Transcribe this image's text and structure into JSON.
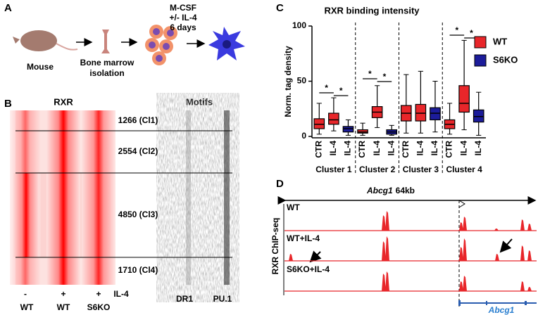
{
  "panel_a": {
    "label": "A",
    "mouse": "Mouse",
    "bone_marrow": [
      "Bone marrow",
      "isolation"
    ],
    "treatment": [
      "M-CSF",
      "+/- IL-4",
      "6 days"
    ]
  },
  "panel_b": {
    "label": "B",
    "heatmap_title": "RXR",
    "motifs_title": "Motifs",
    "clusters": [
      "1266 (Cl1)",
      "2554 (Cl2)",
      "4850 (Cl3)",
      "1710 (Cl4)"
    ],
    "il4_marks": [
      "-",
      "+",
      "+"
    ],
    "il4_label": "IL-4",
    "genotypes": [
      "WT",
      "WT",
      "S6KO"
    ],
    "motifs": [
      "DR1",
      "PU.1"
    ]
  },
  "chart_data": {
    "type": "box",
    "panel_label": "C",
    "title": "RXR binding intensity",
    "y_label": "Norm. tag density",
    "categories": [
      "CTR",
      "IL-4",
      "IL-4",
      "CTR",
      "IL-4",
      "IL-4",
      "CTR",
      "IL-4",
      "IL-4",
      "CTR",
      "IL-4",
      "IL-4"
    ],
    "groups": [
      "Cluster 1",
      "Cluster 2",
      "Cluster 3",
      "Cluster 4"
    ],
    "ylim": [
      0,
      100
    ],
    "yticks": [
      0,
      50,
      100
    ],
    "legend": "top-right",
    "series": [
      {
        "name": "WT",
        "color": "#e8262a",
        "values": [
          [
            2,
            7,
            11,
            16,
            30
          ],
          [
            5,
            11,
            15,
            21,
            35
          ],
          null,
          [
            1,
            3,
            4,
            6,
            12
          ],
          [
            8,
            17,
            22,
            27,
            46
          ],
          null,
          [
            3,
            14,
            21,
            28,
            56
          ],
          [
            3,
            14,
            21,
            29,
            59
          ],
          null,
          [
            2,
            7,
            11,
            15,
            30
          ],
          [
            6,
            22,
            30,
            46,
            87
          ],
          null
        ]
      },
      {
        "name": "S6KO",
        "color": "#1c1c9a",
        "values": [
          null,
          null,
          [
            1,
            4,
            7,
            9,
            15
          ],
          null,
          null,
          [
            1,
            2,
            4,
            6,
            10
          ],
          null,
          null,
          [
            4,
            15,
            21,
            26,
            50
          ],
          null,
          null,
          [
            1,
            13,
            18,
            24,
            40
          ]
        ]
      }
    ],
    "annotations": [
      "*",
      "*",
      "*",
      "*",
      "*",
      "*"
    ]
  },
  "panel_d": {
    "label": "D",
    "gene_italic": "Abcg1",
    "span": "64kb",
    "y_label": "RXR ChIP-seq",
    "tracks": [
      "WT",
      "WT+IL-4",
      "S6KO+IL-4"
    ],
    "gene": "Abcg1"
  }
}
